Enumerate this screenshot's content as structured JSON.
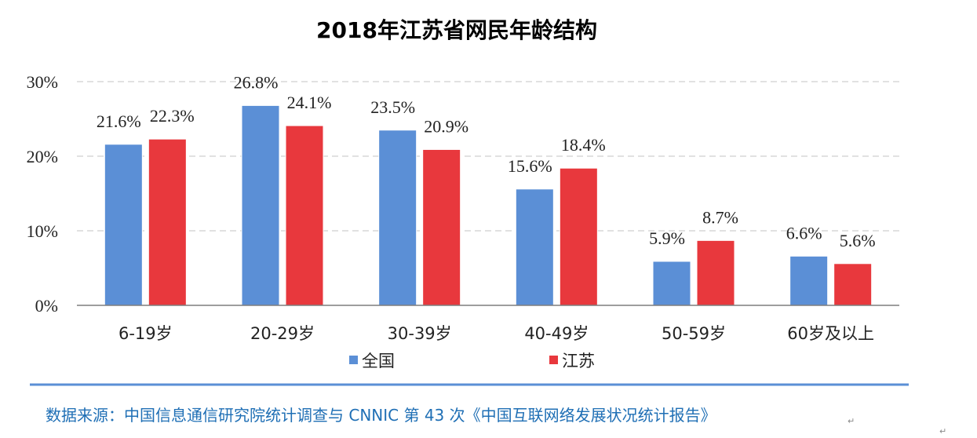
{
  "chart_data": {
    "type": "bar",
    "title": "2018年江苏省网民年龄结构",
    "categories": [
      "6-19岁",
      "20-29岁",
      "30-39岁",
      "40-49岁",
      "50-59岁",
      "60岁及以上"
    ],
    "series": [
      {
        "name": "全国",
        "values": [
          21.6,
          26.8,
          23.5,
          15.6,
          5.9,
          6.6
        ],
        "color": "#5b8fd6"
      },
      {
        "name": "江苏",
        "values": [
          22.3,
          24.1,
          20.9,
          18.4,
          8.7,
          5.6
        ],
        "color": "#e8383d"
      }
    ],
    "yticks": [
      "0%",
      "10%",
      "20%",
      "30%"
    ],
    "ylim": [
      0,
      30
    ],
    "grid": true,
    "legend_position": "bottom"
  },
  "source": {
    "text": "数据来源：中国信息通信研究院统计调查与 CNNIC 第 43 次《中国互联网络发展状况统计报告》",
    "color": "#1f6fb5"
  },
  "marks": {
    "paragraph": "↵"
  }
}
